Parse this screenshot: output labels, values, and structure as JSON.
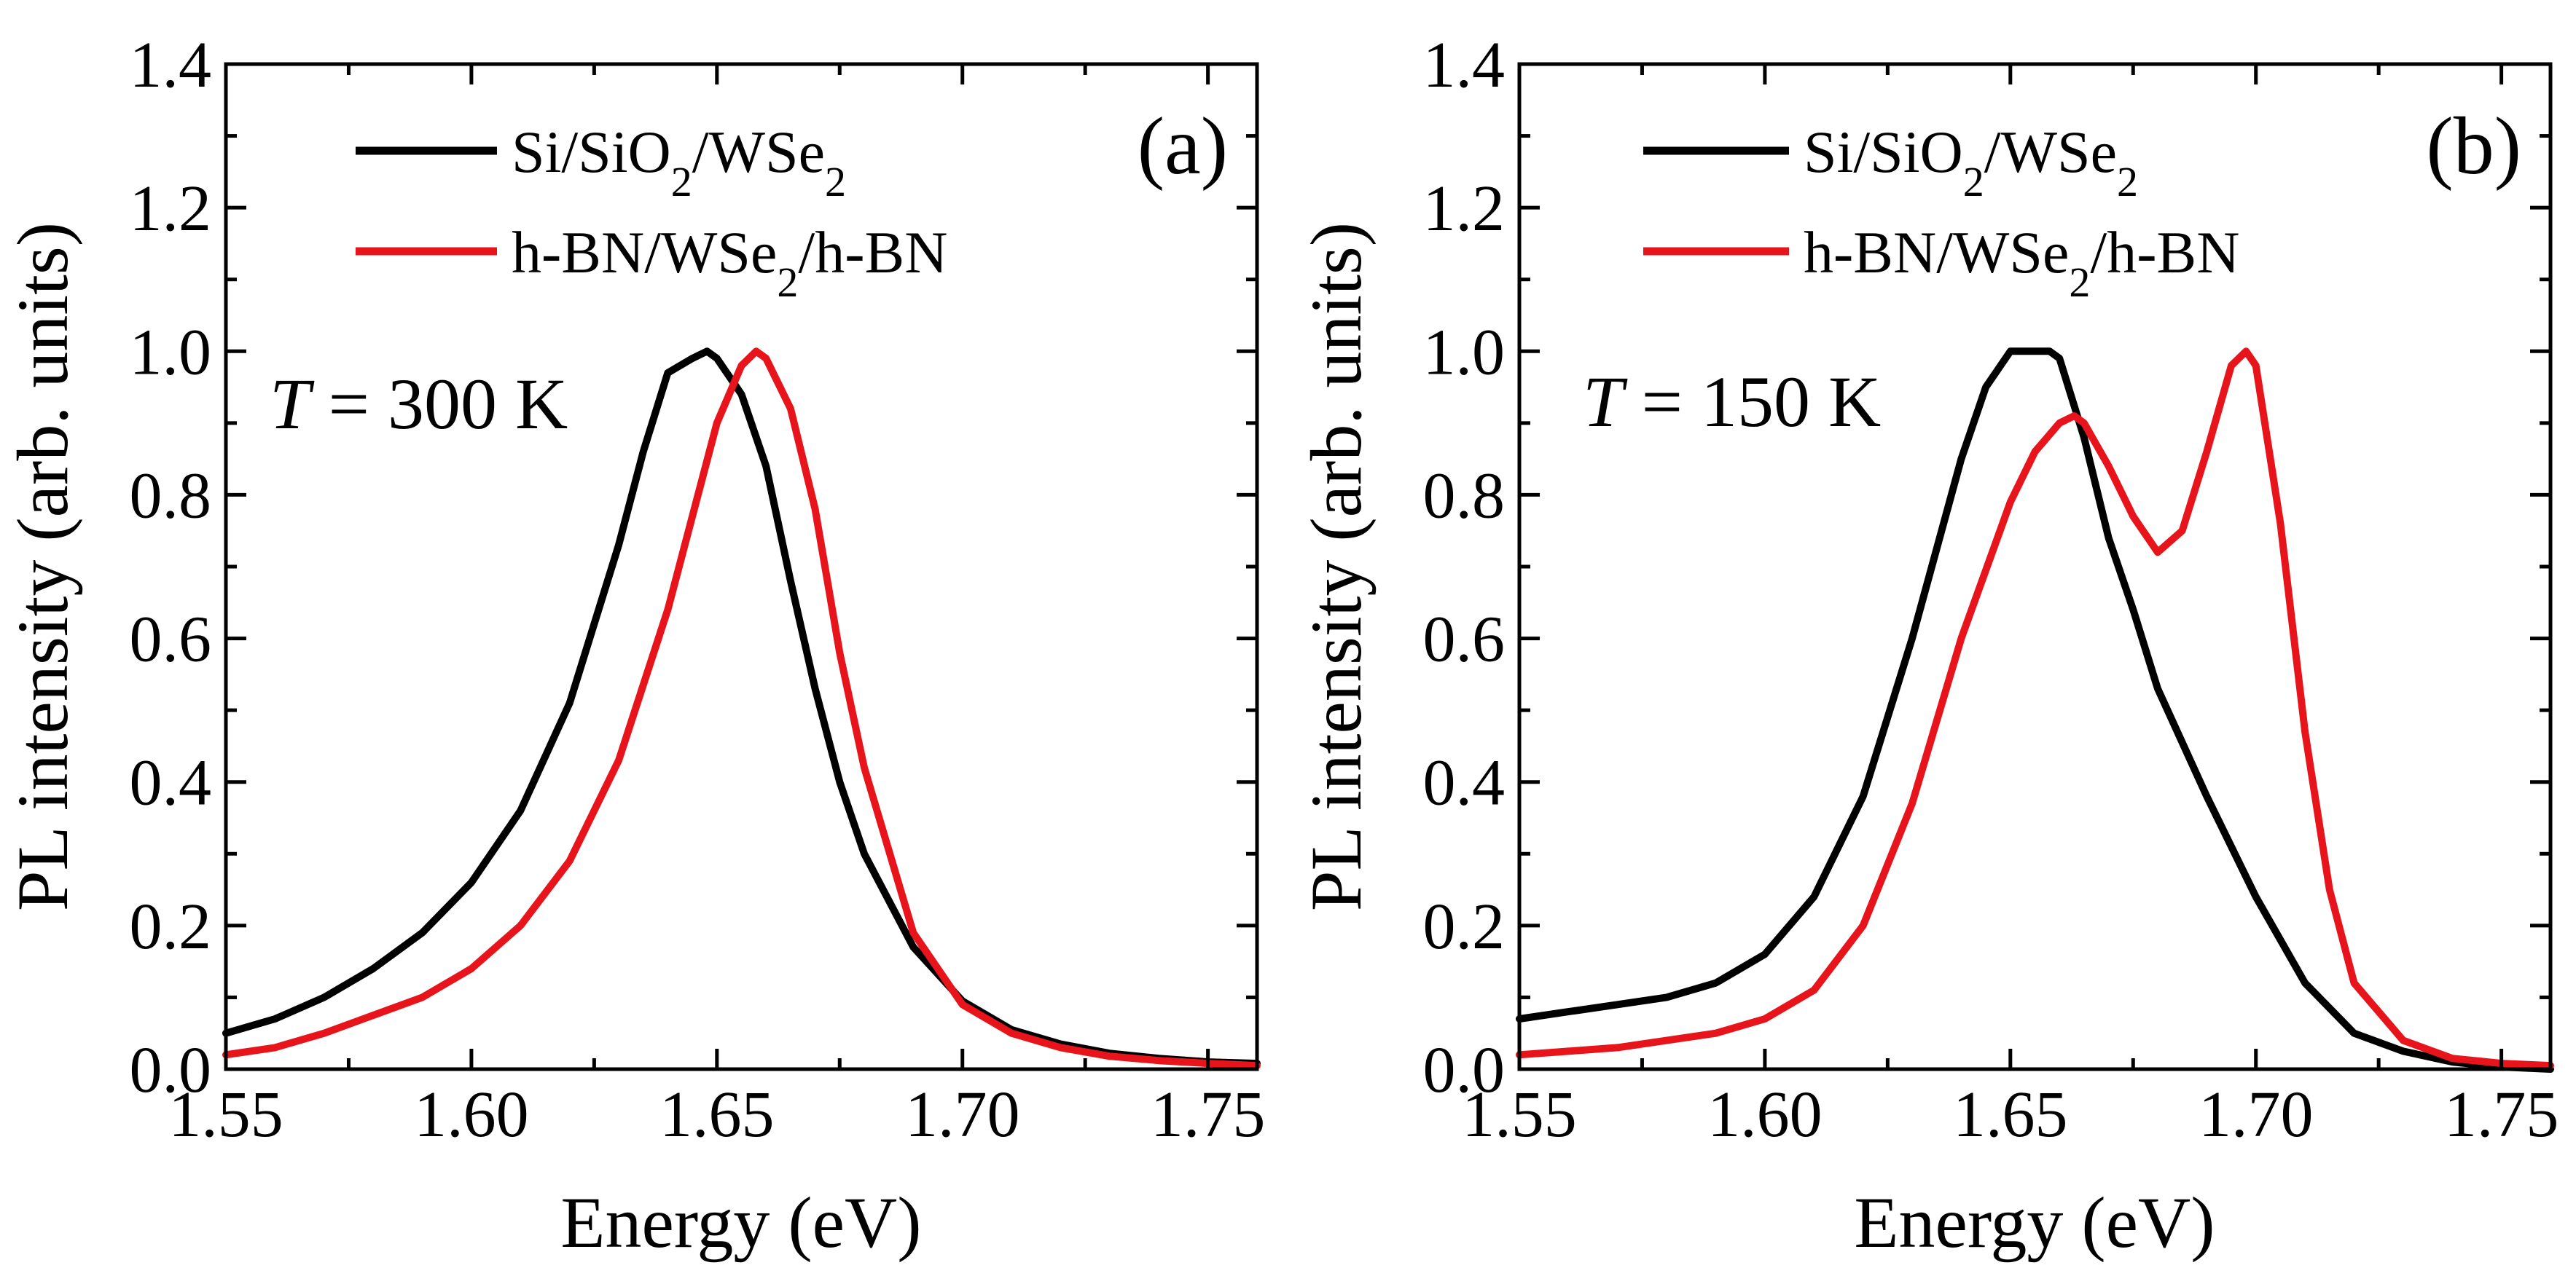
{
  "chart_data": [
    {
      "type": "line",
      "panel_label": "(a)",
      "annotation": {
        "symbol": "T",
        "text": " = 300 K"
      },
      "xlabel": "Energy (eV)",
      "ylabel": "PL intensity (arb. units)",
      "xlim": [
        1.55,
        1.76
      ],
      "ylim": [
        0.0,
        1.4
      ],
      "xticks": [
        "1.55",
        "1.60",
        "1.65",
        "1.70",
        "1.75"
      ],
      "yticks": [
        "0.0",
        "0.2",
        "0.4",
        "0.6",
        "0.8",
        "1.0",
        "1.2",
        "1.4"
      ],
      "legend_position": "top-left",
      "series": [
        {
          "name": "Si/SiO2/WSe2",
          "legend": {
            "a": "Si/SiO",
            "b": "2",
            "c": "/WSe",
            "d": "2",
            "e": ""
          },
          "color": "#000000",
          "x": [
            1.55,
            1.56,
            1.57,
            1.58,
            1.59,
            1.6,
            1.61,
            1.62,
            1.63,
            1.635,
            1.64,
            1.645,
            1.648,
            1.65,
            1.655,
            1.66,
            1.665,
            1.67,
            1.675,
            1.68,
            1.69,
            1.7,
            1.71,
            1.72,
            1.73,
            1.74,
            1.75,
            1.76
          ],
          "y": [
            0.05,
            0.07,
            0.1,
            0.14,
            0.19,
            0.26,
            0.36,
            0.51,
            0.73,
            0.86,
            0.97,
            0.99,
            1.0,
            0.99,
            0.94,
            0.84,
            0.68,
            0.53,
            0.4,
            0.3,
            0.17,
            0.095,
            0.055,
            0.035,
            0.022,
            0.015,
            0.01,
            0.008
          ]
        },
        {
          "name": "h-BN/WSe2/h-BN",
          "legend": {
            "a": "h-BN/WSe",
            "b": "2",
            "c": "/h-BN",
            "d": "",
            "e": ""
          },
          "color": "#e8141c",
          "x": [
            1.55,
            1.56,
            1.57,
            1.58,
            1.59,
            1.6,
            1.61,
            1.62,
            1.63,
            1.64,
            1.645,
            1.65,
            1.655,
            1.658,
            1.66,
            1.665,
            1.67,
            1.675,
            1.68,
            1.69,
            1.7,
            1.71,
            1.72,
            1.73,
            1.74,
            1.75,
            1.76
          ],
          "y": [
            0.02,
            0.03,
            0.05,
            0.075,
            0.1,
            0.14,
            0.2,
            0.29,
            0.43,
            0.64,
            0.77,
            0.9,
            0.98,
            1.0,
            0.99,
            0.92,
            0.78,
            0.58,
            0.42,
            0.19,
            0.09,
            0.05,
            0.03,
            0.018,
            0.012,
            0.008,
            0.005
          ]
        }
      ]
    },
    {
      "type": "line",
      "panel_label": "(b)",
      "annotation": {
        "symbol": "T",
        "text": " = 150 K"
      },
      "xlabel": "Energy (eV)",
      "ylabel": "PL intensity (arb. units)",
      "xlim": [
        1.55,
        1.76
      ],
      "ylim": [
        0.0,
        1.4
      ],
      "xticks": [
        "1.55",
        "1.60",
        "1.65",
        "1.70",
        "1.75"
      ],
      "yticks": [
        "0.0",
        "0.2",
        "0.4",
        "0.6",
        "0.8",
        "1.0",
        "1.2",
        "1.4"
      ],
      "legend_position": "top-left",
      "series": [
        {
          "name": "Si/SiO2/WSe2",
          "legend": {
            "a": "Si/SiO",
            "b": "2",
            "c": "/WSe",
            "d": "2",
            "e": ""
          },
          "color": "#000000",
          "x": [
            1.55,
            1.56,
            1.57,
            1.58,
            1.59,
            1.6,
            1.61,
            1.62,
            1.63,
            1.64,
            1.645,
            1.65,
            1.655,
            1.658,
            1.66,
            1.665,
            1.67,
            1.675,
            1.68,
            1.69,
            1.7,
            1.71,
            1.72,
            1.73,
            1.74,
            1.75,
            1.76
          ],
          "y": [
            0.07,
            0.08,
            0.09,
            0.1,
            0.12,
            0.16,
            0.24,
            0.38,
            0.6,
            0.85,
            0.95,
            1.0,
            1.0,
            1.0,
            0.99,
            0.88,
            0.74,
            0.64,
            0.53,
            0.38,
            0.24,
            0.12,
            0.05,
            0.025,
            0.01,
            0.003,
            0.0
          ]
        },
        {
          "name": "h-BN/WSe2/h-BN",
          "legend": {
            "a": "h-BN/WSe",
            "b": "2",
            "c": "/h-BN",
            "d": "",
            "e": ""
          },
          "color": "#e8141c",
          "x": [
            1.55,
            1.56,
            1.57,
            1.58,
            1.59,
            1.6,
            1.61,
            1.62,
            1.63,
            1.64,
            1.65,
            1.655,
            1.66,
            1.663,
            1.665,
            1.67,
            1.675,
            1.68,
            1.685,
            1.69,
            1.695,
            1.698,
            1.7,
            1.705,
            1.71,
            1.715,
            1.72,
            1.73,
            1.74,
            1.75,
            1.76
          ],
          "y": [
            0.02,
            0.025,
            0.03,
            0.04,
            0.05,
            0.07,
            0.11,
            0.2,
            0.37,
            0.6,
            0.79,
            0.86,
            0.9,
            0.91,
            0.9,
            0.84,
            0.77,
            0.72,
            0.75,
            0.86,
            0.98,
            1.0,
            0.98,
            0.76,
            0.47,
            0.25,
            0.12,
            0.04,
            0.015,
            0.008,
            0.005
          ]
        }
      ]
    }
  ]
}
